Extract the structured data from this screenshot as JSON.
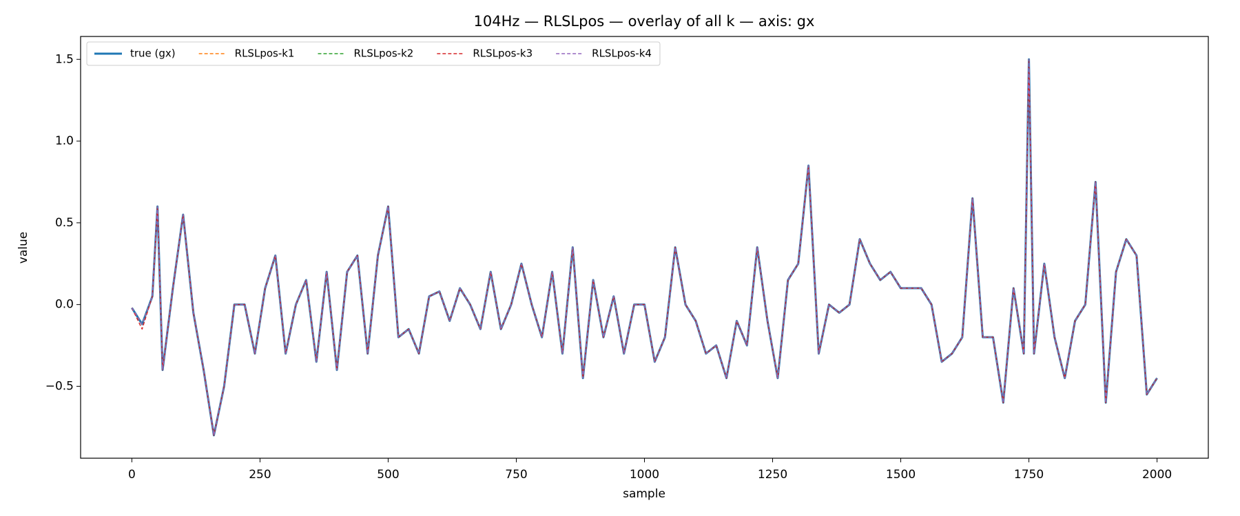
{
  "chart_data": {
    "type": "line",
    "title": "104Hz — RLSLpos — overlay of all k — axis: gx",
    "xlabel": "sample",
    "ylabel": "value",
    "x": [
      0,
      20,
      40,
      50,
      60,
      80,
      100,
      120,
      140,
      160,
      180,
      200,
      220,
      240,
      260,
      280,
      300,
      320,
      340,
      360,
      380,
      400,
      420,
      440,
      460,
      480,
      500,
      520,
      540,
      560,
      580,
      600,
      620,
      640,
      660,
      680,
      700,
      720,
      740,
      760,
      780,
      800,
      820,
      840,
      860,
      880,
      900,
      920,
      940,
      960,
      980,
      1000,
      1020,
      1040,
      1060,
      1080,
      1100,
      1120,
      1140,
      1160,
      1180,
      1200,
      1220,
      1240,
      1260,
      1280,
      1300,
      1320,
      1340,
      1360,
      1380,
      1400,
      1420,
      1440,
      1460,
      1480,
      1500,
      1520,
      1540,
      1560,
      1580,
      1600,
      1620,
      1640,
      1660,
      1680,
      1700,
      1720,
      1740,
      1750,
      1760,
      1780,
      1800,
      1820,
      1840,
      1860,
      1880,
      1900,
      1920,
      1940,
      1960,
      1980,
      2000
    ],
    "series": [
      {
        "name": "true (gx)",
        "color": "#1f77b4",
        "dashed": false,
        "values": [
          -0.02,
          -0.12,
          0.05,
          0.6,
          -0.4,
          0.1,
          0.55,
          -0.05,
          -0.4,
          -0.8,
          -0.5,
          0.0,
          0.0,
          -0.3,
          0.1,
          0.3,
          -0.3,
          0.0,
          0.15,
          -0.35,
          0.2,
          -0.4,
          0.2,
          0.3,
          -0.3,
          0.3,
          0.6,
          -0.2,
          -0.15,
          -0.3,
          0.05,
          0.08,
          -0.1,
          0.1,
          0.0,
          -0.15,
          0.2,
          -0.15,
          0.0,
          0.25,
          0.0,
          -0.2,
          0.2,
          -0.3,
          0.35,
          -0.45,
          0.15,
          -0.2,
          0.05,
          -0.3,
          0.0,
          0.0,
          -0.35,
          -0.2,
          0.35,
          0.0,
          -0.1,
          -0.3,
          -0.25,
          -0.45,
          -0.1,
          -0.25,
          0.35,
          -0.1,
          -0.45,
          0.15,
          0.25,
          0.85,
          -0.3,
          0.0,
          -0.05,
          0.0,
          0.4,
          0.25,
          0.15,
          0.2,
          0.1,
          0.1,
          0.1,
          0.0,
          -0.35,
          -0.3,
          -0.2,
          0.65,
          -0.2,
          -0.2,
          -0.6,
          0.1,
          -0.3,
          1.5,
          -0.3,
          0.25,
          -0.2,
          -0.45,
          -0.1,
          0.0,
          0.75,
          -0.6,
          0.2,
          0.4,
          0.3,
          -0.55,
          -0.45
        ]
      },
      {
        "name": "RLSLpos-k1",
        "color": "#ff7f0e",
        "dashed": true,
        "values": [
          -0.02,
          -0.12,
          0.05,
          0.6,
          -0.4,
          0.1,
          0.55,
          -0.05,
          -0.4,
          -0.8,
          -0.5,
          0.0,
          0.0,
          -0.3,
          0.1,
          0.3,
          -0.3,
          0.0,
          0.15,
          -0.35,
          0.2,
          -0.4,
          0.2,
          0.3,
          -0.3,
          0.3,
          0.6,
          -0.2,
          -0.15,
          -0.3,
          0.05,
          0.08,
          -0.1,
          0.1,
          0.0,
          -0.15,
          0.2,
          -0.15,
          0.0,
          0.25,
          0.0,
          -0.2,
          0.2,
          -0.3,
          0.35,
          -0.45,
          0.15,
          -0.2,
          0.05,
          -0.3,
          0.0,
          0.0,
          -0.35,
          -0.2,
          0.35,
          0.0,
          -0.1,
          -0.3,
          -0.25,
          -0.45,
          -0.1,
          -0.25,
          0.35,
          -0.1,
          -0.45,
          0.15,
          0.25,
          0.85,
          -0.3,
          0.0,
          -0.05,
          0.0,
          0.4,
          0.25,
          0.15,
          0.2,
          0.1,
          0.1,
          0.1,
          0.0,
          -0.35,
          -0.3,
          -0.2,
          0.65,
          -0.2,
          -0.2,
          -0.6,
          0.1,
          -0.3,
          1.5,
          -0.3,
          0.25,
          -0.2,
          -0.45,
          -0.1,
          0.0,
          0.75,
          -0.6,
          0.2,
          0.4,
          0.3,
          -0.55,
          -0.45
        ]
      },
      {
        "name": "RLSLpos-k2",
        "color": "#2ca02c",
        "dashed": true,
        "values": [
          -0.02,
          -0.12,
          0.05,
          0.6,
          -0.4,
          0.1,
          0.55,
          -0.05,
          -0.4,
          -0.8,
          -0.5,
          0.0,
          0.0,
          -0.3,
          0.1,
          0.3,
          -0.3,
          0.0,
          0.15,
          -0.35,
          0.2,
          -0.4,
          0.2,
          0.3,
          -0.3,
          0.3,
          0.6,
          -0.2,
          -0.15,
          -0.3,
          0.05,
          0.08,
          -0.1,
          0.1,
          0.0,
          -0.15,
          0.2,
          -0.15,
          0.0,
          0.25,
          0.0,
          -0.2,
          0.2,
          -0.3,
          0.35,
          -0.45,
          0.15,
          -0.2,
          0.05,
          -0.3,
          0.0,
          0.0,
          -0.35,
          -0.2,
          0.35,
          0.0,
          -0.1,
          -0.3,
          -0.25,
          -0.45,
          -0.1,
          -0.25,
          0.35,
          -0.1,
          -0.45,
          0.15,
          0.25,
          0.85,
          -0.3,
          0.0,
          -0.05,
          0.0,
          0.4,
          0.25,
          0.15,
          0.2,
          0.1,
          0.1,
          0.1,
          0.0,
          -0.35,
          -0.3,
          -0.2,
          0.65,
          -0.2,
          -0.2,
          -0.6,
          0.1,
          -0.3,
          1.5,
          -0.3,
          0.25,
          -0.2,
          -0.45,
          -0.1,
          0.0,
          0.75,
          -0.6,
          0.2,
          0.4,
          0.3,
          -0.55,
          -0.45
        ]
      },
      {
        "name": "RLSLpos-k3",
        "color": "#d62728",
        "dashed": true,
        "values": [
          -0.02,
          -0.15,
          0.05,
          0.6,
          -0.4,
          0.1,
          0.55,
          -0.05,
          -0.4,
          -0.8,
          -0.5,
          0.0,
          0.0,
          -0.3,
          0.1,
          0.3,
          -0.3,
          0.0,
          0.15,
          -0.35,
          0.2,
          -0.4,
          0.2,
          0.3,
          -0.3,
          0.3,
          0.6,
          -0.2,
          -0.15,
          -0.3,
          0.05,
          0.08,
          -0.1,
          0.1,
          0.0,
          -0.15,
          0.2,
          -0.15,
          0.0,
          0.25,
          0.0,
          -0.2,
          0.2,
          -0.3,
          0.35,
          -0.45,
          0.15,
          -0.2,
          0.05,
          -0.3,
          0.0,
          0.0,
          -0.35,
          -0.2,
          0.35,
          0.0,
          -0.1,
          -0.3,
          -0.25,
          -0.45,
          -0.1,
          -0.25,
          0.35,
          -0.1,
          -0.45,
          0.15,
          0.25,
          0.85,
          -0.3,
          0.0,
          -0.05,
          0.0,
          0.4,
          0.25,
          0.15,
          0.2,
          0.1,
          0.1,
          0.1,
          0.0,
          -0.35,
          -0.3,
          -0.2,
          0.65,
          -0.2,
          -0.2,
          -0.6,
          0.1,
          -0.3,
          1.5,
          -0.3,
          0.25,
          -0.2,
          -0.45,
          -0.1,
          0.0,
          0.75,
          -0.6,
          0.2,
          0.4,
          0.3,
          -0.55,
          -0.45
        ]
      },
      {
        "name": "RLSLpos-k4",
        "color": "#9467bd",
        "dashed": true,
        "values": [
          -0.02,
          -0.12,
          0.05,
          0.6,
          -0.4,
          0.1,
          0.55,
          -0.05,
          -0.4,
          -0.8,
          -0.5,
          0.0,
          0.0,
          -0.3,
          0.1,
          0.3,
          -0.3,
          0.0,
          0.15,
          -0.35,
          0.2,
          -0.4,
          0.2,
          0.3,
          -0.3,
          0.3,
          0.6,
          -0.2,
          -0.15,
          -0.3,
          0.05,
          0.08,
          -0.1,
          0.1,
          0.0,
          -0.15,
          0.2,
          -0.15,
          0.0,
          0.25,
          0.0,
          -0.2,
          0.2,
          -0.3,
          0.35,
          -0.45,
          0.15,
          -0.2,
          0.05,
          -0.3,
          0.0,
          0.0,
          -0.35,
          -0.2,
          0.35,
          0.0,
          -0.1,
          -0.3,
          -0.25,
          -0.45,
          -0.1,
          -0.25,
          0.35,
          -0.1,
          -0.45,
          0.15,
          0.25,
          0.85,
          -0.3,
          0.0,
          -0.05,
          0.0,
          0.4,
          0.25,
          0.15,
          0.2,
          0.1,
          0.1,
          0.1,
          0.0,
          -0.35,
          -0.3,
          -0.2,
          0.65,
          -0.2,
          -0.2,
          -0.6,
          0.1,
          -0.3,
          1.5,
          -0.3,
          0.25,
          -0.2,
          -0.45,
          -0.1,
          0.0,
          0.75,
          -0.6,
          0.2,
          0.4,
          0.3,
          -0.55,
          -0.45
        ]
      }
    ],
    "xlim": [
      -100,
      2100
    ],
    "xticks": [
      0,
      250,
      500,
      750,
      1000,
      1250,
      1500,
      1750,
      2000
    ],
    "ylim": [
      -0.94,
      1.64
    ],
    "yticks": [
      {
        "value": -0.5,
        "label": "−0.5"
      },
      {
        "value": 0,
        "label": "0.0"
      },
      {
        "value": 0.5,
        "label": "0.5"
      },
      {
        "value": 1,
        "label": "1.0"
      },
      {
        "value": 1.5,
        "label": "1.5"
      }
    ],
    "grid": false,
    "legend": "upper left"
  }
}
